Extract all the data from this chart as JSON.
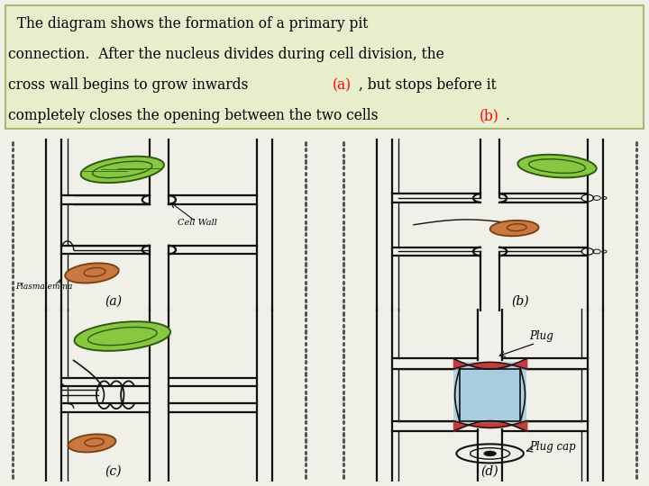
{
  "background_color": "#f0f0e8",
  "text_box_color": "#e8edcc",
  "text_box_border": "#aab870",
  "fig_width": 7.2,
  "fig_height": 5.4,
  "dpi": 100,
  "labels": {
    "a": "(a)",
    "b": "(b)",
    "c": "(c)",
    "d": "(d)"
  },
  "annotations": {
    "cell_wall": "Cell Wall",
    "plasmalemma": "Plasmalemma",
    "plug": "Plug",
    "plug_cap": "Plug cap"
  },
  "colors": {
    "black": "#111111",
    "dot_wall": "#555555",
    "green_bright": "#88c840",
    "green_dark": "#2d5a10",
    "green_inner": "#3a7a18",
    "orange": "#c87840",
    "orange_dark": "#7a3c10",
    "blue_fill": "#a8cce0",
    "red_plug": "#c03030",
    "white": "#ffffff",
    "bg": "#f8f8f0"
  },
  "text_lines": [
    "  The diagram shows the formation of a primary pit",
    "connection.  After the nucleus divides during cell division, the",
    "cross wall begins to grow inwards (a), but stops before it",
    "completely closes the opening between the two cells (b)."
  ]
}
